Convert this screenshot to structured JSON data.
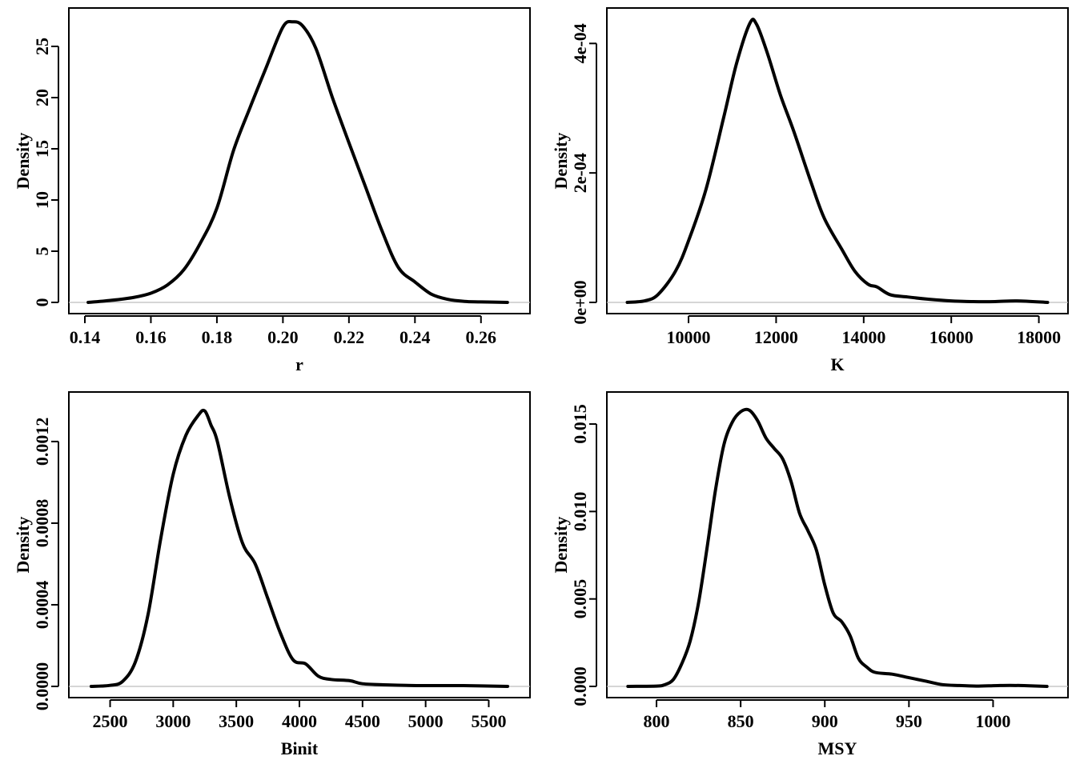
{
  "chart_data": [
    {
      "type": "line",
      "xlabel": "r",
      "ylabel": "Density",
      "xlim": [
        0.14,
        0.27
      ],
      "ylim": [
        0,
        27.5
      ],
      "xticks": [
        "0.14",
        "0.16",
        "0.18",
        "0.20",
        "0.22",
        "0.24",
        "0.26"
      ],
      "xtick_values": [
        0.14,
        0.16,
        0.18,
        0.2,
        0.22,
        0.24,
        0.26
      ],
      "yticks": [
        "0",
        "5",
        "10",
        "15",
        "20",
        "25"
      ],
      "ytick_values": [
        0,
        5,
        10,
        15,
        20,
        25
      ],
      "series": [
        {
          "x": [
            0.141,
            0.148,
            0.155,
            0.16,
            0.165,
            0.17,
            0.175,
            0.18,
            0.185,
            0.19,
            0.195,
            0.2,
            0.203,
            0.206,
            0.21,
            0.215,
            0.22,
            0.225,
            0.23,
            0.235,
            0.24,
            0.245,
            0.25,
            0.255,
            0.26,
            0.268
          ],
          "y": [
            0.0,
            0.2,
            0.5,
            0.9,
            1.7,
            3.2,
            5.8,
            9.2,
            14.8,
            19.0,
            23.0,
            26.9,
            27.4,
            27.0,
            24.8,
            20.0,
            15.6,
            11.3,
            7.0,
            3.4,
            2.0,
            0.8,
            0.3,
            0.1,
            0.05,
            0.0
          ]
        }
      ]
    },
    {
      "type": "line",
      "xlabel": "K",
      "ylabel": "Density",
      "xlim": [
        8500,
        18300
      ],
      "ylim": [
        0,
        0.000435
      ],
      "xticks": [
        "10000",
        "12000",
        "14000",
        "16000",
        "18000"
      ],
      "xtick_values": [
        10000,
        12000,
        14000,
        16000,
        18000
      ],
      "yticks": [
        "0e+00",
        "2e-04",
        "4e-04"
      ],
      "ytick_values": [
        0,
        0.0002,
        0.0004
      ],
      "series": [
        {
          "x": [
            8600,
            9000,
            9300,
            9700,
            10000,
            10400,
            10800,
            11100,
            11400,
            11550,
            11800,
            12100,
            12400,
            12800,
            13100,
            13500,
            13800,
            14100,
            14300,
            14600,
            15000,
            15500,
            16000,
            16500,
            17000,
            17500,
            18200
          ],
          "y": [
            0.0,
            2.4e-06,
            1.2e-05,
            4.8e-05,
            9.5e-05,
            0.000175,
            0.000285,
            0.00037,
            0.000431,
            0.00043,
            0.000385,
            0.00032,
            0.000265,
            0.000185,
            0.00013,
            8.2e-05,
            4.8e-05,
            2.8e-05,
            2.4e-05,
            1.2e-05,
            8.4e-06,
            4.8e-06,
            2.4e-06,
            1.2e-06,
            1.2e-06,
            2.4e-06,
            0.0
          ]
        }
      ]
    },
    {
      "type": "line",
      "xlabel": "Binit",
      "ylabel": "Density",
      "xlim": [
        2300,
        5700
      ],
      "ylim": [
        0,
        0.00138
      ],
      "xticks": [
        "2500",
        "3000",
        "3500",
        "4000",
        "4500",
        "5000",
        "5500"
      ],
      "xtick_values": [
        2500,
        3000,
        3500,
        4000,
        4500,
        5000,
        5500
      ],
      "yticks": [
        "0.0000",
        "0.0004",
        "0.0008",
        "0.0012"
      ],
      "ytick_values": [
        0,
        0.0004,
        0.0008,
        0.0012
      ],
      "series": [
        {
          "x": [
            2350,
            2500,
            2600,
            2700,
            2800,
            2900,
            3000,
            3100,
            3200,
            3250,
            3300,
            3350,
            3450,
            3550,
            3650,
            3750,
            3850,
            3950,
            4050,
            4150,
            4250,
            4400,
            4500,
            4700,
            5000,
            5300,
            5650
          ],
          "y": [
            0.0,
            5e-06,
            2.5e-05,
            0.00012,
            0.00035,
            0.00072,
            0.00104,
            0.00123,
            0.00133,
            0.00135,
            0.00128,
            0.0012,
            0.00092,
            0.0007,
            0.0006,
            0.00043,
            0.00026,
            0.00013,
            0.00011,
            5e-05,
            3.4e-05,
            2.8e-05,
            1.3e-05,
            7.5e-06,
            3.8e-06,
            3.8e-06,
            0.0
          ]
        }
      ]
    },
    {
      "type": "line",
      "xlabel": "MSY",
      "ylabel": "Density",
      "xlim": [
        780,
        1035
      ],
      "ylim": [
        0,
        0.0161
      ],
      "xticks": [
        "800",
        "850",
        "900",
        "950",
        "1000"
      ],
      "xtick_values": [
        800,
        850,
        900,
        950,
        1000
      ],
      "yticks": [
        "0.000",
        "0.005",
        "0.010",
        "0.015"
      ],
      "ytick_values": [
        0,
        0.005,
        0.01,
        0.015
      ],
      "series": [
        {
          "x": [
            783,
            800,
            805,
            810,
            815,
            820,
            825,
            830,
            835,
            840,
            845,
            850,
            855,
            860,
            865,
            870,
            875,
            880,
            885,
            890,
            895,
            900,
            905,
            910,
            915,
            920,
            925,
            930,
            940,
            950,
            960,
            970,
            980,
            990,
            1000,
            1010,
            1020,
            1032
          ],
          "y": [
            0.0,
            2e-05,
            0.0001,
            0.0004,
            0.0013,
            0.0026,
            0.0048,
            0.0079,
            0.0112,
            0.0138,
            0.0151,
            0.0157,
            0.0158,
            0.0152,
            0.0142,
            0.0136,
            0.013,
            0.0117,
            0.0099,
            0.0089,
            0.0078,
            0.0058,
            0.0042,
            0.0037,
            0.0029,
            0.0016,
            0.0011,
            0.0008,
            0.0007,
            0.0005,
            0.0003,
            0.0001,
            5e-05,
            2e-05,
            4e-05,
            6e-05,
            4e-05,
            0.0
          ]
        }
      ]
    }
  ]
}
